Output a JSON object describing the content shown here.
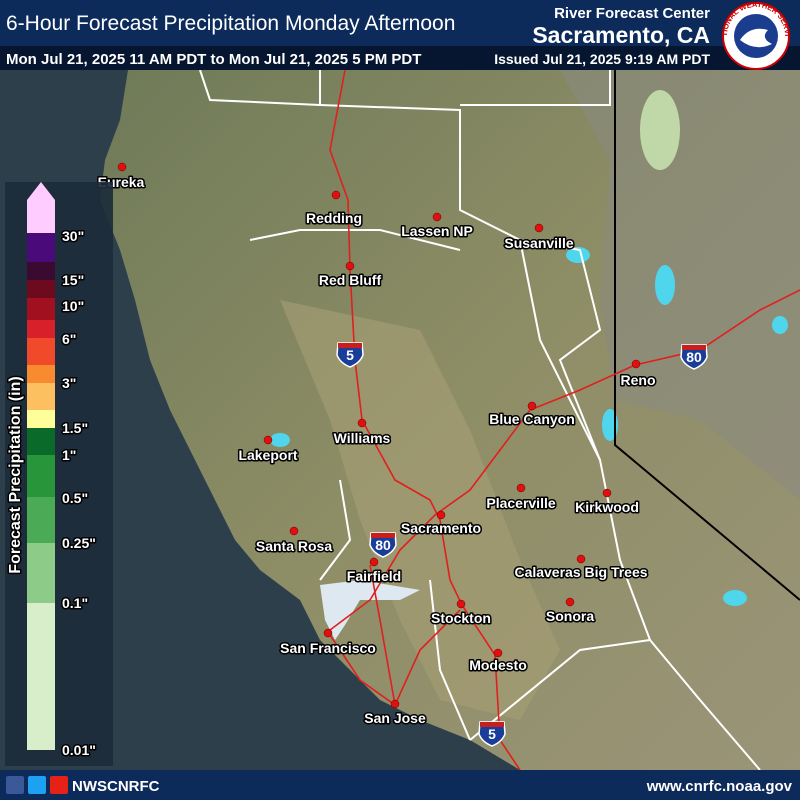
{
  "header": {
    "title": "6-Hour Forecast Precipitation Monday Afternoon",
    "center_label": "River Forecast Center",
    "center_name": "Sacramento, CA",
    "valid_period": "Mon Jul 21, 2025 11 AM PDT to Mon Jul 21, 2025 5 PM PDT",
    "issued": "Issued Jul 21, 2025 9:19 AM PDT"
  },
  "logo_text": "NATIONAL WEATHER SERVICE",
  "legend": {
    "title": "Forecast Precipitation (in)",
    "colors": [
      "#ffccff",
      "#ffccff",
      "#4b0a7a",
      "#3a0a30",
      "#6e0a1e",
      "#a0101e",
      "#d8202a",
      "#f04a2a",
      "#f88a30",
      "#fcc060",
      "#ffff99",
      "#0a6a2a",
      "#28953a",
      "#4aaa55",
      "#8ccc88",
      "#d8eecb"
    ],
    "labels": [
      "30\"",
      "15\"",
      "10\"",
      "6\"",
      "3\"",
      "1.5\"",
      "1\"",
      "0.5\"",
      "0.25\"",
      "0.1\"",
      "0.01\""
    ]
  },
  "cities": [
    "Eureka",
    "Redding",
    "Lassen NP",
    "Susanville",
    "Red Bluff",
    "Reno",
    "Blue Canyon",
    "Williams",
    "Lakeport",
    "Placerville",
    "Kirkwood",
    "Sacramento",
    "Santa Rosa",
    "Fairfield",
    "Calaveras Big Trees",
    "Sonora",
    "Stockton",
    "San Francisco",
    "Modesto",
    "San Jose"
  ],
  "highways": [
    "5",
    "80",
    "80",
    "5"
  ],
  "footer": {
    "social_handle": "NWSCNRFC",
    "url": "www.cnrfc.noaa.gov"
  }
}
